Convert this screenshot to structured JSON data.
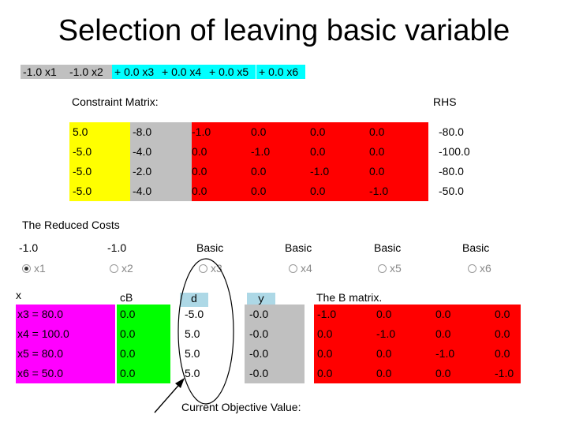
{
  "title": "Selection of leaving basic variable",
  "objective_terms": [
    {
      "text": "-1.0 x1",
      "color": "#c0c0c0"
    },
    {
      "text": "-1.0 x2",
      "color": "#c0c0c0"
    },
    {
      "text": "+ 0.0 x3",
      "color": "#00ffff"
    },
    {
      "text": "+ 0.0 x4",
      "color": "#00ffff"
    },
    {
      "text": "+ 0.0 x5",
      "color": "#00ffff"
    },
    {
      "text": "+ 0.0 x6",
      "color": "#00ffff"
    }
  ],
  "constraint_matrix": {
    "label": "Constraint Matrix:",
    "rhs_label": "RHS",
    "rows": [
      [
        "5.0",
        "-8.0",
        "-1.0",
        "0.0",
        "0.0",
        "0.0"
      ],
      [
        "-5.0",
        "-4.0",
        "0.0",
        "-1.0",
        "0.0",
        "0.0"
      ],
      [
        "-5.0",
        "-2.0",
        "0.0",
        "0.0",
        "-1.0",
        "0.0"
      ],
      [
        "-5.0",
        "-4.0",
        "0.0",
        "0.0",
        "0.0",
        "-1.0"
      ]
    ],
    "rhs": [
      "-80.0",
      "-100.0",
      "-80.0",
      "-50.0"
    ],
    "colors": {
      "col1": "#ffff00",
      "col2": "#c0c0c0",
      "slack": "#ff0000"
    }
  },
  "reduced_costs": {
    "label": "The Reduced Costs",
    "values": [
      "-1.0",
      "-1.0",
      "Basic",
      "Basic",
      "Basic",
      "Basic"
    ],
    "variables": [
      "x1",
      "x2",
      "x3",
      "x4",
      "x5",
      "x6"
    ],
    "selected": "x1"
  },
  "basis_table": {
    "x_header": "x",
    "cb_header": "cB",
    "d_header": "d",
    "y_header": "y",
    "b_matrix_label": "The B matrix.",
    "x_values": [
      "x3 = 80.0",
      "x4 = 100.0",
      "x5 = 80.0",
      "x6 = 50.0"
    ],
    "cb_values": [
      "0.0",
      "0.0",
      "0.0",
      "0.0"
    ],
    "d_values": [
      "-5.0",
      "5.0",
      "5.0",
      "5.0"
    ],
    "y_values": [
      "-0.0",
      "-0.0",
      "-0.0",
      "-0.0"
    ],
    "b_matrix": [
      [
        "-1.0",
        "0.0",
        "0.0",
        "0.0"
      ],
      [
        "0.0",
        "-1.0",
        "0.0",
        "0.0"
      ],
      [
        "0.0",
        "0.0",
        "-1.0",
        "0.0"
      ],
      [
        "0.0",
        "0.0",
        "0.0",
        "-1.0"
      ]
    ],
    "colors": {
      "x": "#ff00ff",
      "cb": "#00ff00",
      "d_header": "#add8e6",
      "y": "#c0c0c0",
      "b": "#ff0000"
    }
  },
  "current_objective_label": "Current Objective Value:"
}
